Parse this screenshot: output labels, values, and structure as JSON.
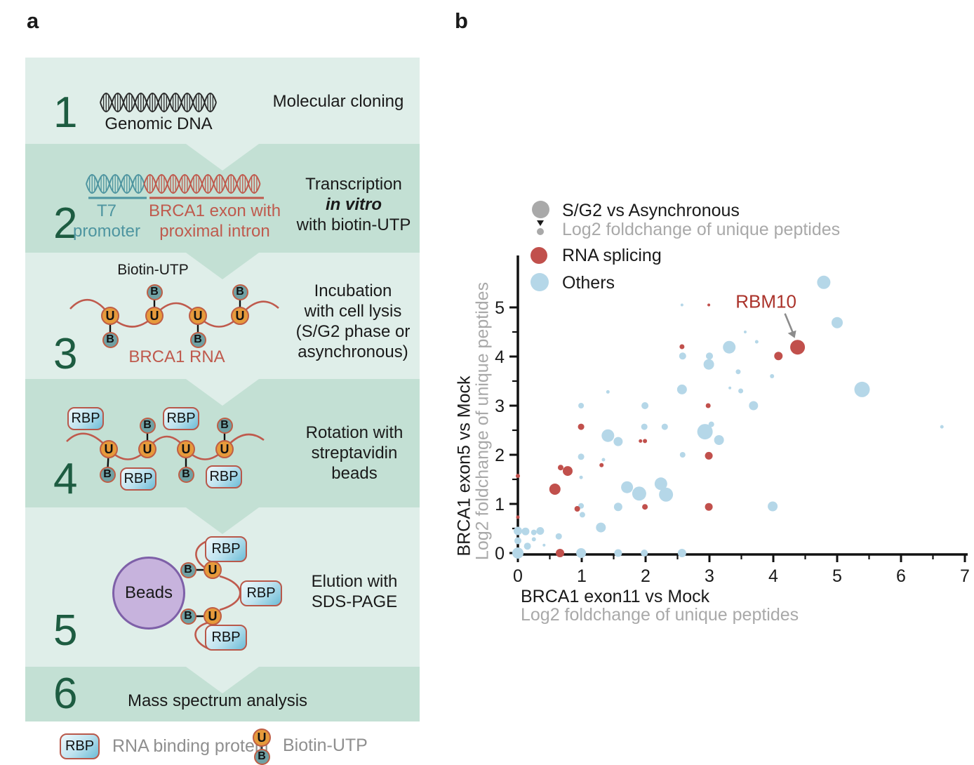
{
  "figure": {
    "panel_a_label": "a",
    "panel_b_label": "b"
  },
  "panel_a": {
    "steps": {
      "s1": {
        "num": "1",
        "dna_caption": "Genomic DNA",
        "title": "Molecular cloning"
      },
      "s2": {
        "num": "2",
        "t7_1": "T7",
        "t7_2": "promoter",
        "brca_1": "BRCA1 exon with",
        "brca_2": "proximal intron",
        "title_1": "Transcription",
        "title_2": "in vitro",
        "title_3": "with biotin-UTP"
      },
      "s3": {
        "num": "3",
        "biotin": "Biotin-UTP",
        "rna": "BRCA1 RNA",
        "title_1": "Incubation",
        "title_2": "with cell lysis",
        "title_3": "(S/G2 phase or",
        "title_4": "asynchronous)"
      },
      "s4": {
        "num": "4",
        "title_1": "Rotation with",
        "title_2": "streptavidin",
        "title_3": "beads"
      },
      "s5": {
        "num": "5",
        "beads": "Beads",
        "title_1": "Elution with",
        "title_2": "SDS-PAGE"
      },
      "s6": {
        "num": "6",
        "title": "Mass spectrum analysis"
      }
    },
    "mol": {
      "u": "U",
      "b": "B",
      "rbp": "RBP"
    },
    "legend": {
      "rbp": "RBP",
      "rbp_text": "RNA binding protein",
      "biotin_text": "Biotin-UTP"
    }
  },
  "panel_b": {
    "legend": {
      "size_title": "S/G2 vs Asynchronous",
      "size_sub": "Log2 foldchange of unique peptides",
      "rna_splicing": "RNA splicing",
      "others": "Others"
    },
    "xlabel": "BRCA1 exon11 vs Mock",
    "xlabel_sub": "Log2 foldchange of unique peptides",
    "ylabel": "BRCA1 exon5 vs Mock",
    "ylabel_sub": "Log2 foldchange of unique peptides"
  },
  "chart_data": {
    "type": "scatter",
    "title": "",
    "xlabel": "BRCA1 exon11 vs Mock (Log2 foldchange of unique peptides)",
    "ylabel": "BRCA1 exon5 vs Mock (Log2 foldchange of unique peptides)",
    "xlim": [
      0,
      7
    ],
    "ylim": [
      0,
      5.9
    ],
    "xticks": [
      0,
      1,
      2,
      3,
      4,
      5,
      6,
      7
    ],
    "yticks": [
      0,
      1,
      2,
      3,
      4,
      5
    ],
    "grid": false,
    "size_meaning": "S/G2 vs Asynchronous Log2 foldchange of unique peptides",
    "series": [
      {
        "name": "Others",
        "color": "#b5d7e8",
        "points": [
          [
            0,
            0,
            8
          ],
          [
            0,
            0.45,
            6
          ],
          [
            0.12,
            0.44,
            5.5
          ],
          [
            0.25,
            0.42,
            4
          ],
          [
            0.35,
            0.45,
            5.5
          ],
          [
            0,
            0.25,
            5
          ],
          [
            0.15,
            0.14,
            5
          ],
          [
            0.41,
            0.16,
            2
          ],
          [
            0.64,
            0.34,
            4.5
          ],
          [
            0.25,
            0.28,
            3
          ],
          [
            0.99,
            0.96,
            4
          ],
          [
            1.01,
            0.78,
            4
          ],
          [
            1.3,
            0.52,
            7
          ],
          [
            0.99,
            0,
            7
          ],
          [
            1.57,
            0,
            5.5
          ],
          [
            1.98,
            0,
            5
          ],
          [
            2.57,
            0,
            6
          ],
          [
            0.99,
            1.96,
            4.5
          ],
          [
            0.99,
            1.54,
            2.5
          ],
          [
            1.34,
            1.9,
            2.5
          ],
          [
            0.99,
            3,
            4
          ],
          [
            1.41,
            3.28,
            2.5
          ],
          [
            1.99,
            3,
            5
          ],
          [
            1.41,
            2.39,
            9
          ],
          [
            1.57,
            2.27,
            6.5
          ],
          [
            1.71,
            1.34,
            8.5
          ],
          [
            1.9,
            1.21,
            10
          ],
          [
            2.24,
            1.41,
            9
          ],
          [
            2.32,
            1.19,
            10
          ],
          [
            1.57,
            0.94,
            6
          ],
          [
            1.98,
            2.57,
            4.5
          ],
          [
            2.3,
            2.57,
            4.5
          ],
          [
            2.58,
            2,
            4
          ],
          [
            2.93,
            2.47,
            11
          ],
          [
            3.03,
            2.62,
            4
          ],
          [
            3.15,
            2.3,
            7
          ],
          [
            2.57,
            3.33,
            7
          ],
          [
            2.58,
            4.01,
            5
          ],
          [
            3,
            4.01,
            5
          ],
          [
            2.99,
            3.84,
            7.5
          ],
          [
            3.31,
            4.19,
            9
          ],
          [
            2.57,
            5.05,
            2
          ],
          [
            3.32,
            3.36,
            2
          ],
          [
            3.45,
            3.69,
            3.5
          ],
          [
            3.49,
            3.3,
            3.5
          ],
          [
            3.56,
            4.5,
            2
          ],
          [
            3.74,
            4.3,
            2.5
          ],
          [
            3.69,
            3,
            6.5
          ],
          [
            3.98,
            3.6,
            3
          ],
          [
            3.99,
            0.95,
            7
          ],
          [
            4.79,
            5.51,
            9.5
          ],
          [
            5,
            4.69,
            8
          ],
          [
            5.39,
            3.33,
            11
          ],
          [
            6.64,
            2.57,
            2.5
          ]
        ]
      },
      {
        "name": "RNA splicing",
        "color": "#c1504c",
        "points": [
          [
            0,
            1.57,
            3
          ],
          [
            0,
            0.73,
            2.5
          ],
          [
            0.58,
            1.3,
            8
          ],
          [
            0.67,
            1.74,
            4
          ],
          [
            0.78,
            1.67,
            7
          ],
          [
            0.66,
            0,
            6
          ],
          [
            0.93,
            0.9,
            4
          ],
          [
            0.99,
            2.57,
            4.5
          ],
          [
            1.31,
            1.79,
            3
          ],
          [
            1.92,
            2.28,
            2.5
          ],
          [
            1.99,
            2.28,
            3
          ],
          [
            1.99,
            0.94,
            4
          ],
          [
            2.57,
            4.2,
            3.5
          ],
          [
            2.99,
            5.05,
            2
          ],
          [
            2.98,
            3,
            3.5
          ],
          [
            2.99,
            1.98,
            5.5
          ],
          [
            2.99,
            0.94,
            5.5
          ],
          [
            4.08,
            4.01,
            6
          ],
          [
            4.38,
            4.19,
            10.5
          ]
        ]
      }
    ],
    "annotation": {
      "label": "RBM10",
      "x": 4.38,
      "y": 4.19,
      "color": "#ab332b"
    }
  },
  "colors": {
    "band_light": "#dfeee9",
    "band_dark": "#c3e0d4",
    "step_number": "#1d5c41",
    "teal": "#4e95a0",
    "red_brown": "#bf5a4d",
    "uracil_orange": "#e69a3b",
    "biotin_teal": "#6fa1a4",
    "beads_purple": "#c7b3dd",
    "beads_border": "#7e60a8",
    "point_blue": "#b5d7e8",
    "point_red": "#c1504c",
    "size_legend_gray": "#a9a9a9",
    "annotation_red": "#ab332b"
  }
}
